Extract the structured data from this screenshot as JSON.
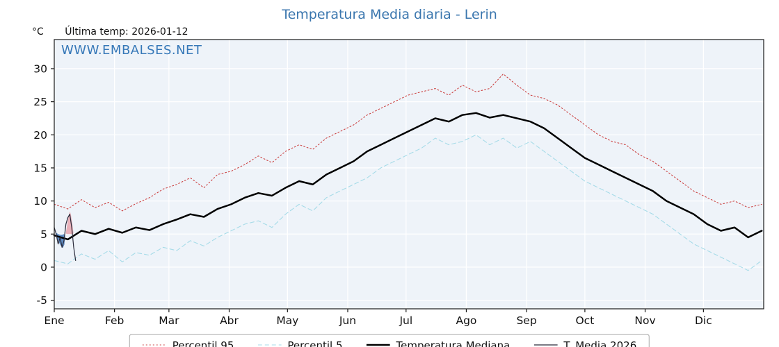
{
  "title": "Temperatura Media diaria - Lerin",
  "header": {
    "degree_label": "°C",
    "ultima_temp": "Última temp: 2026-01-12"
  },
  "watermark": "WWW.EMBALSES.NET",
  "colors": {
    "title": "#3a76ae",
    "watermark": "#3678b8",
    "plot_bg": "#eef3f9",
    "grid": "#ffffff",
    "axis": "#1a1a1a",
    "tick_label": "#111111",
    "legend_border": "#a9a9a9"
  },
  "chart_data": {
    "type": "line",
    "title": "Temperatura Media diaria - Lerin",
    "xlabel": "",
    "ylabel": "°C",
    "x_unit": "day_of_year",
    "xlim": [
      0,
      365
    ],
    "ylim": [
      -6.3,
      34.4
    ],
    "yticks": [
      -5,
      0,
      5,
      10,
      15,
      20,
      25,
      30
    ],
    "months": [
      "Ene",
      "Feb",
      "Mar",
      "Abr",
      "May",
      "Jun",
      "Jul",
      "Ago",
      "Sep",
      "Oct",
      "Nov",
      "Dic"
    ],
    "month_start_days": [
      0,
      31,
      59,
      90,
      120,
      151,
      181,
      212,
      243,
      273,
      304,
      334
    ],
    "grid": true,
    "legend_position": "bottom-center",
    "series": [
      {
        "name": "Percentil 95",
        "color": "#cc4444",
        "style": "dotted",
        "width": 1.1,
        "x_days": [
          0,
          7,
          14,
          21,
          28,
          35,
          42,
          49,
          56,
          63,
          70,
          77,
          84,
          91,
          98,
          105,
          112,
          119,
          126,
          133,
          140,
          147,
          154,
          161,
          168,
          175,
          182,
          189,
          196,
          203,
          210,
          217,
          224,
          231,
          238,
          245,
          252,
          259,
          266,
          273,
          280,
          287,
          294,
          301,
          308,
          315,
          322,
          329,
          336,
          343,
          350,
          357,
          364
        ],
        "values": [
          9.5,
          8.8,
          10.2,
          9.0,
          9.8,
          8.5,
          9.6,
          10.5,
          11.8,
          12.5,
          13.5,
          12.0,
          14.0,
          14.5,
          15.5,
          16.8,
          15.8,
          17.5,
          18.5,
          17.8,
          19.5,
          20.5,
          21.5,
          23.0,
          24.0,
          25.0,
          26.0,
          26.5,
          27.0,
          26.0,
          27.5,
          26.5,
          27.0,
          29.2,
          27.5,
          26.0,
          25.5,
          24.5,
          23.0,
          21.5,
          20.0,
          19.0,
          18.5,
          17.0,
          16.0,
          14.5,
          13.0,
          11.5,
          10.5,
          9.5,
          10.0,
          9.0,
          9.5
        ]
      },
      {
        "name": "Percentil 5",
        "color": "#a6dbe8",
        "style": "dashed",
        "width": 1.1,
        "x_days": [
          0,
          7,
          14,
          21,
          28,
          35,
          42,
          49,
          56,
          63,
          70,
          77,
          84,
          91,
          98,
          105,
          112,
          119,
          126,
          133,
          140,
          147,
          154,
          161,
          168,
          175,
          182,
          189,
          196,
          203,
          210,
          217,
          224,
          231,
          238,
          245,
          252,
          259,
          266,
          273,
          280,
          287,
          294,
          301,
          308,
          315,
          322,
          329,
          336,
          343,
          350,
          357,
          364
        ],
        "values": [
          1.0,
          0.5,
          2.0,
          1.2,
          2.5,
          0.8,
          2.2,
          1.8,
          3.0,
          2.5,
          4.0,
          3.2,
          4.5,
          5.5,
          6.5,
          7.0,
          6.0,
          8.0,
          9.5,
          8.5,
          10.5,
          11.5,
          12.5,
          13.5,
          15.0,
          16.0,
          17.0,
          18.0,
          19.5,
          18.5,
          19.0,
          20.0,
          18.5,
          19.5,
          18.0,
          19.0,
          17.5,
          16.0,
          14.5,
          13.0,
          12.0,
          11.0,
          10.0,
          9.0,
          8.0,
          6.5,
          5.0,
          3.5,
          2.5,
          1.5,
          0.5,
          -0.5,
          1.0
        ]
      },
      {
        "name": "Temperatura Mediana",
        "color": "#000000",
        "style": "solid",
        "width": 2.5,
        "x_days": [
          0,
          7,
          14,
          21,
          28,
          35,
          42,
          49,
          56,
          63,
          70,
          77,
          84,
          91,
          98,
          105,
          112,
          119,
          126,
          133,
          140,
          147,
          154,
          161,
          168,
          175,
          182,
          189,
          196,
          203,
          210,
          217,
          224,
          231,
          238,
          245,
          252,
          259,
          266,
          273,
          280,
          287,
          294,
          301,
          308,
          315,
          322,
          329,
          336,
          343,
          350,
          357,
          364
        ],
        "values": [
          4.8,
          4.2,
          5.5,
          5.0,
          5.8,
          5.2,
          6.0,
          5.6,
          6.5,
          7.2,
          8.0,
          7.6,
          8.8,
          9.5,
          10.5,
          11.2,
          10.8,
          12.0,
          13.0,
          12.5,
          14.0,
          15.0,
          16.0,
          17.5,
          18.5,
          19.5,
          20.5,
          21.5,
          22.5,
          22.0,
          23.0,
          23.3,
          22.6,
          23.0,
          22.5,
          22.0,
          21.0,
          19.5,
          18.0,
          16.5,
          15.5,
          14.5,
          13.5,
          12.5,
          11.5,
          10.0,
          9.0,
          8.0,
          6.5,
          5.5,
          6.0,
          4.5,
          5.5
        ]
      },
      {
        "name": "T. Media 2026",
        "color": "#2a2a3a",
        "style": "solid",
        "width": 1.2,
        "x_days": [
          0,
          1,
          2,
          3,
          4,
          5,
          6,
          7,
          8,
          9,
          10,
          11
        ],
        "values": [
          6.0,
          5.0,
          3.5,
          4.5,
          3.0,
          4.0,
          6.5,
          7.5,
          8.0,
          6.0,
          3.0,
          1.0
        ]
      }
    ],
    "shades": [
      {
        "name": "below-median-fill",
        "color": "#4f81bd",
        "opacity": 0.9,
        "points": [
          [
            1.0,
            5.2
          ],
          [
            2,
            5.0
          ],
          [
            3,
            4.9
          ],
          [
            4,
            4.9
          ],
          [
            5,
            5.0
          ],
          [
            5.6,
            4.7
          ],
          [
            5.2,
            3.4
          ],
          [
            4.4,
            2.9
          ],
          [
            3.4,
            3.2
          ],
          [
            2.2,
            3.9
          ],
          [
            1.2,
            4.5
          ]
        ]
      },
      {
        "name": "above-median-fill",
        "color": "#e8aab2",
        "opacity": 0.9,
        "points": [
          [
            5.9,
            5.1
          ],
          [
            6.5,
            6.1
          ],
          [
            7.0,
            7.1
          ],
          [
            7.6,
            8.0
          ],
          [
            8.1,
            8.4
          ],
          [
            8.6,
            7.9
          ],
          [
            9.1,
            6.9
          ],
          [
            9.6,
            5.9
          ],
          [
            9.9,
            5.1
          ],
          [
            8.8,
            5.0
          ],
          [
            7.6,
            5.0
          ],
          [
            6.6,
            5.0
          ]
        ]
      }
    ]
  },
  "legend": {
    "items": [
      "Percentil 95",
      "Percentil 5",
      "Temperatura Mediana",
      "T. Media 2026"
    ]
  }
}
